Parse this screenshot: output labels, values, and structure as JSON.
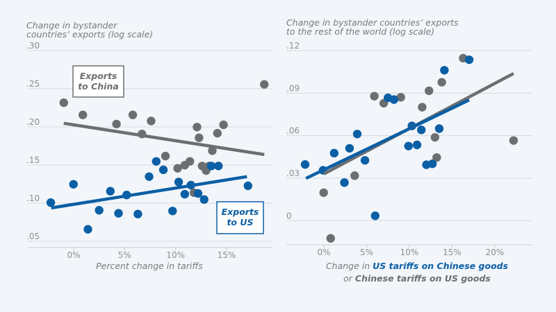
{
  "colors": {
    "china": "#6d6e70",
    "us": "#0b5fa5",
    "background": "#f2f6fa"
  },
  "chart_data": [
    {
      "type": "scatter",
      "title_lines": [
        "Change in bystander",
        "countries’ exports (log scale)"
      ],
      "xlabel": "Percent change in tariffs",
      "xlim": [
        -4.5,
        19.5
      ],
      "ylim": [
        0.05,
        0.3
      ],
      "x_ticks": [
        {
          "v": 0,
          "label": "0%"
        },
        {
          "v": 5,
          "label": "5%"
        },
        {
          "v": 10,
          "label": "10%"
        },
        {
          "v": 15,
          "label": "15%"
        }
      ],
      "y_ticks": [
        {
          "v": 0.05,
          "label": ".05"
        },
        {
          "v": 0.1,
          "label": ".10"
        },
        {
          "v": 0.15,
          "label": ".15"
        },
        {
          "v": 0.2,
          "label": ".20"
        },
        {
          "v": 0.25,
          "label": ".25"
        },
        {
          "v": 0.3,
          "label": ".30"
        }
      ],
      "grid": true,
      "annotations": [
        {
          "series": "china",
          "lines": [
            "Exports",
            "to China"
          ]
        },
        {
          "series": "us",
          "lines": [
            "Exports",
            "to US"
          ]
        }
      ],
      "series": [
        {
          "name": "Exports to China",
          "key": "china",
          "points": [
            [
              -0.97,
              0.229
            ],
            [
              0.9,
              0.213
            ],
            [
              4.2,
              0.201
            ],
            [
              5.8,
              0.213
            ],
            [
              7.6,
              0.205
            ],
            [
              6.7,
              0.188
            ],
            [
              9.0,
              0.159
            ],
            [
              10.2,
              0.143
            ],
            [
              10.9,
              0.147
            ],
            [
              11.4,
              0.152
            ],
            [
              12.1,
              0.197
            ],
            [
              12.3,
              0.183
            ],
            [
              12.6,
              0.146
            ],
            [
              13.0,
              0.14
            ],
            [
              13.3,
              0.146
            ],
            [
              13.6,
              0.166
            ],
            [
              14.1,
              0.189
            ],
            [
              14.7,
              0.2
            ],
            [
              11.8,
              0.111
            ],
            [
              18.7,
              0.253
            ]
          ],
          "fit": [
            [
              -0.97,
              0.202
            ],
            [
              18.7,
              0.161
            ]
          ]
        },
        {
          "name": "Exports to US",
          "key": "us",
          "points": [
            [
              -2.25,
              0.098
            ],
            [
              -0.02,
              0.122
            ],
            [
              1.4,
              0.063
            ],
            [
              2.5,
              0.088
            ],
            [
              3.6,
              0.113
            ],
            [
              4.4,
              0.084
            ],
            [
              5.2,
              0.108
            ],
            [
              6.3,
              0.083
            ],
            [
              7.4,
              0.132
            ],
            [
              8.1,
              0.152
            ],
            [
              8.8,
              0.141
            ],
            [
              9.7,
              0.087
            ],
            [
              10.3,
              0.125
            ],
            [
              10.9,
              0.109
            ],
            [
              11.5,
              0.121
            ],
            [
              12.2,
              0.11
            ],
            [
              12.8,
              0.102
            ],
            [
              13.5,
              0.146
            ],
            [
              14.2,
              0.146
            ],
            [
              17.1,
              0.12
            ]
          ],
          "fit": [
            [
              -2.2,
              0.091
            ],
            [
              17.0,
              0.132
            ]
          ]
        }
      ]
    },
    {
      "type": "scatter",
      "title_lines": [
        "Change in bystander countries’ exports",
        "to the rest of the world (log scale)"
      ],
      "xlabel_parts": [
        {
          "text": "Change in ",
          "style": "plain"
        },
        {
          "text": "US tariffs on Chinese goods",
          "style": "us"
        },
        {
          "text": "or ",
          "style": "plain",
          "newline": true
        },
        {
          "text": "Chinese tariffs on US goods",
          "style": "china"
        }
      ],
      "xlim": [
        -4.4,
        24.4
      ],
      "ylim": [
        -0.0186,
        0.12
      ],
      "x_ticks": [
        {
          "v": 0,
          "label": "0%"
        },
        {
          "v": 5,
          "label": "5%"
        },
        {
          "v": 10,
          "label": "10%"
        },
        {
          "v": 15,
          "label": "15%"
        },
        {
          "v": 20,
          "label": "20%"
        }
      ],
      "y_ticks": [
        {
          "v": 0,
          "label": "0"
        },
        {
          "v": 0.03,
          "label": ".03"
        },
        {
          "v": 0.06,
          "label": ".06"
        },
        {
          "v": 0.09,
          "label": ".09"
        },
        {
          "v": 0.12,
          "label": ".12"
        }
      ],
      "grid": true,
      "series": [
        {
          "name": "Chinese tariffs on US goods",
          "key": "china",
          "points": [
            [
              -0.03,
              0.0183
            ],
            [
              0.79,
              -0.0139
            ],
            [
              3.6,
              0.0303
            ],
            [
              5.9,
              0.0864
            ],
            [
              7.0,
              0.0814
            ],
            [
              9.0,
              0.0856
            ],
            [
              11.5,
              0.0786
            ],
            [
              12.3,
              0.0902
            ],
            [
              13.0,
              0.0573
            ],
            [
              13.2,
              0.0431
            ],
            [
              13.8,
              0.0962
            ],
            [
              16.3,
              0.1132
            ],
            [
              22.2,
              0.0551
            ]
          ],
          "fit": [
            [
              0,
              0.0316
            ],
            [
              22.2,
              0.1024
            ]
          ]
        },
        {
          "name": "US tariffs on Chinese goods",
          "key": "us",
          "points": [
            [
              -2.2,
              0.0382
            ],
            [
              -0.1,
              0.0341
            ],
            [
              1.2,
              0.0462
            ],
            [
              2.4,
              0.0254
            ],
            [
              3.0,
              0.0496
            ],
            [
              3.9,
              0.0597
            ],
            [
              4.8,
              0.0411
            ],
            [
              6.0,
              0.002
            ],
            [
              7.5,
              0.0852
            ],
            [
              8.2,
              0.084
            ],
            [
              9.9,
              0.0512
            ],
            [
              10.3,
              0.0654
            ],
            [
              10.9,
              0.052
            ],
            [
              11.4,
              0.0626
            ],
            [
              12.0,
              0.038
            ],
            [
              12.7,
              0.0387
            ],
            [
              13.5,
              0.0635
            ],
            [
              14.1,
              0.1047
            ],
            [
              17.0,
              0.1121
            ]
          ],
          "fit": [
            [
              -2.1,
              0.0284
            ],
            [
              17.0,
              0.0837
            ]
          ]
        }
      ]
    }
  ]
}
